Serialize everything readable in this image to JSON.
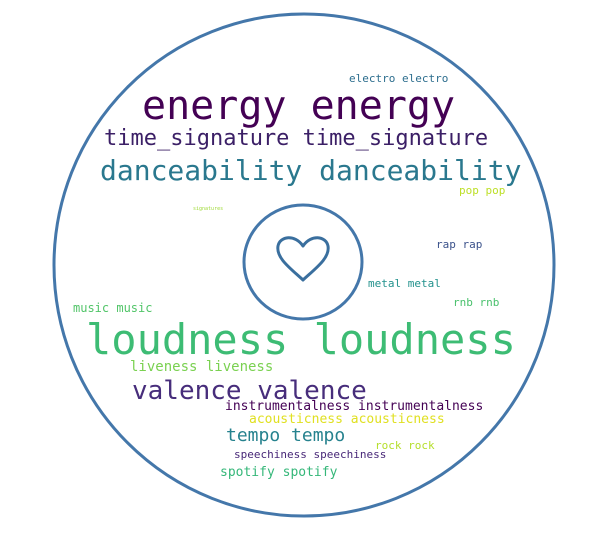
{
  "colors": {
    "disc_outline": "#4477aa",
    "heart_outline": "#3a6f9e"
  },
  "words": {
    "energy": {
      "text": "energy energy",
      "color": "#440154"
    },
    "time_signature": {
      "text": "time_signature time_signature",
      "color": "#3b1f66"
    },
    "danceability": {
      "text": "danceability danceability",
      "color": "#2a788e"
    },
    "electro": {
      "text": "electro electro",
      "color": "#2d6e8e"
    },
    "pop": {
      "text": "pop pop",
      "color": "#bddf26"
    },
    "tiny": {
      "text": "signatures",
      "color": "#a0da39"
    },
    "rap": {
      "text": "rap rap",
      "color": "#3b528b"
    },
    "metal": {
      "text": "metal metal",
      "color": "#21918c"
    },
    "rnb": {
      "text": "rnb rnb",
      "color": "#4ac16d"
    },
    "music": {
      "text": "music music",
      "color": "#52c569"
    },
    "loudness": {
      "text": "loudness loudness",
      "color": "#3dbc74"
    },
    "liveness": {
      "text": "liveness liveness",
      "color": "#7ad151"
    },
    "valence": {
      "text": "valence valence",
      "color": "#472d7b"
    },
    "instrumentalness": {
      "text": "instrumentalness instrumentalness",
      "color": "#440154"
    },
    "acousticness": {
      "text": "acousticness acousticness",
      "color": "#e0e021"
    },
    "tempo": {
      "text": "tempo tempo",
      "color": "#26828e"
    },
    "rock": {
      "text": "rock rock",
      "color": "#b5de2b"
    },
    "speechiness": {
      "text": "speechiness speechiness",
      "color": "#482878"
    },
    "spotify": {
      "text": "spotify spotify",
      "color": "#35b779"
    }
  }
}
